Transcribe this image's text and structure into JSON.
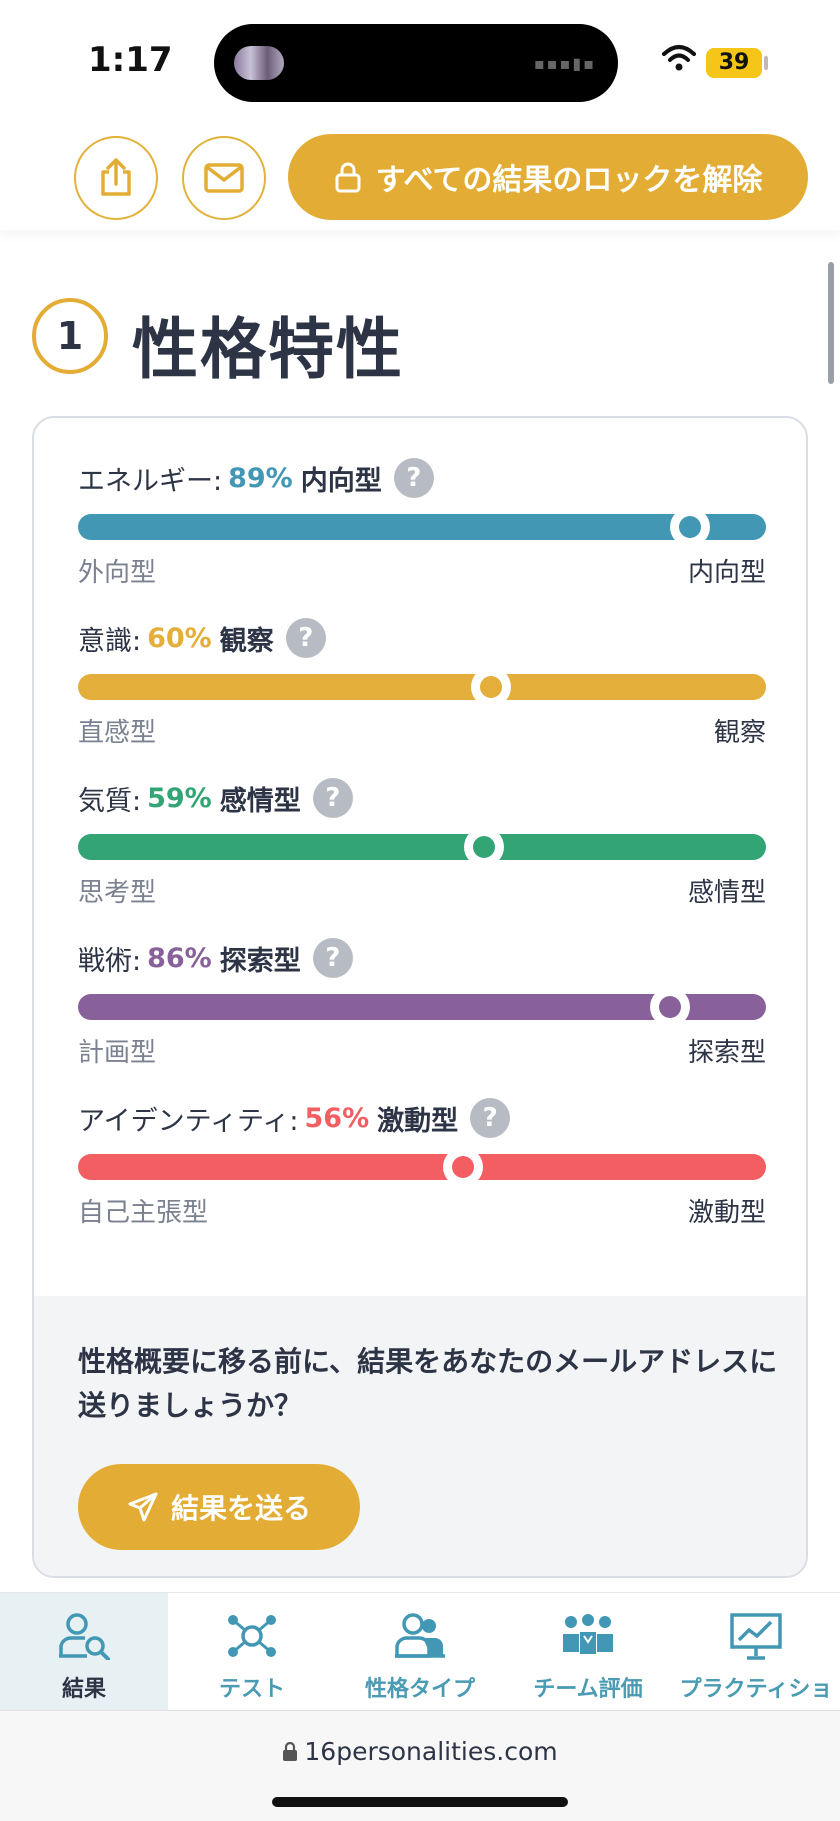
{
  "status": {
    "time": "1:17",
    "battery": "39"
  },
  "header": {
    "unlock_label": "すべての結果のロックを解除"
  },
  "section": {
    "number": "1",
    "title": "性格特性"
  },
  "traits": [
    {
      "name": "エネルギー:",
      "percent": "89%",
      "type": "内向型",
      "left": "外向型",
      "right": "内向型",
      "value": 0.89,
      "color": "#4298b4"
    },
    {
      "name": "意識:",
      "percent": "60%",
      "type": "観察",
      "left": "直感型",
      "right": "観察",
      "value": 0.6,
      "color": "#e4ae3a"
    },
    {
      "name": "気質:",
      "percent": "59%",
      "type": "感情型",
      "left": "思考型",
      "right": "感情型",
      "value": 0.59,
      "color": "#33a474"
    },
    {
      "name": "戦術:",
      "percent": "86%",
      "type": "探索型",
      "left": "計画型",
      "right": "探索型",
      "value": 0.86,
      "color": "#88619a"
    },
    {
      "name": "アイデンティティ:",
      "percent": "56%",
      "type": "激動型",
      "left": "自己主張型",
      "right": "激動型",
      "value": 0.56,
      "color": "#f25e62"
    }
  ],
  "email_prompt": {
    "text": "性格概要に移る前に、結果をあなたのメールアドレスに送りましょうか？",
    "button": "結果を送る"
  },
  "nav": [
    {
      "label": "結果",
      "icon": "results-icon",
      "active": true
    },
    {
      "label": "テスト",
      "icon": "test-icon",
      "active": false
    },
    {
      "label": "性格タイプ",
      "icon": "personality-types-icon",
      "active": false
    },
    {
      "label": "チーム評価",
      "icon": "team-icon",
      "active": false
    },
    {
      "label": "プラクティショ",
      "icon": "practitioner-icon",
      "active": false
    }
  ],
  "browser": {
    "url": "16personalities.com"
  }
}
